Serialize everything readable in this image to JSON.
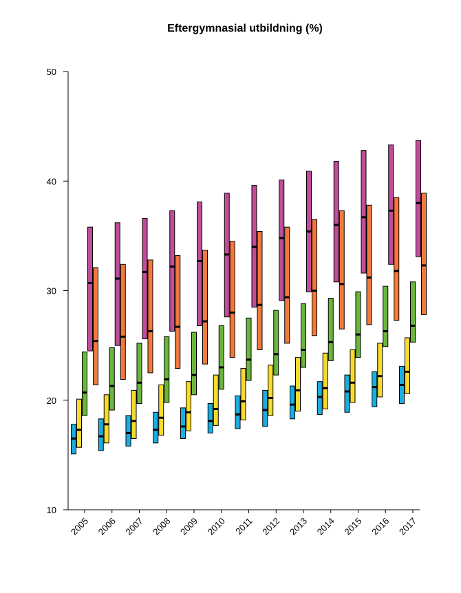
{
  "chart_data": {
    "type": "box-range",
    "title": "Eftergymnasial utbildning (%)",
    "xlabel": "",
    "ylabel": "",
    "ylim": [
      10,
      50
    ],
    "yticks": [
      10,
      20,
      30,
      40,
      50
    ],
    "categories": [
      "2005",
      "2006",
      "2007",
      "2008",
      "2009",
      "2010",
      "2011",
      "2012",
      "2013",
      "2014",
      "2015",
      "2016",
      "2017"
    ],
    "grid": false,
    "legend": "none",
    "series": [
      {
        "color": "#1aaee0",
        "low": [
          15.1,
          15.4,
          15.8,
          16.1,
          16.5,
          17.0,
          17.4,
          17.6,
          18.3,
          18.7,
          18.9,
          19.4,
          19.7
        ],
        "median": [
          16.5,
          16.7,
          17.0,
          17.3,
          17.6,
          18.1,
          18.7,
          19.1,
          19.6,
          20.3,
          20.8,
          21.2,
          21.4
        ],
        "high": [
          17.8,
          18.3,
          18.6,
          18.9,
          19.3,
          19.7,
          20.4,
          20.9,
          21.3,
          21.7,
          22.3,
          22.6,
          23.1
        ]
      },
      {
        "color": "#f9db2b",
        "low": [
          15.7,
          16.1,
          16.5,
          16.8,
          17.2,
          17.7,
          18.2,
          18.6,
          19.0,
          19.2,
          19.8,
          20.3,
          20.6
        ],
        "median": [
          17.3,
          17.8,
          18.1,
          18.4,
          18.9,
          19.2,
          19.9,
          20.2,
          20.9,
          21.1,
          21.6,
          22.2,
          22.6
        ],
        "high": [
          20.1,
          20.5,
          20.9,
          21.4,
          21.7,
          22.3,
          22.9,
          23.2,
          23.9,
          24.3,
          24.6,
          25.2,
          25.7
        ]
      },
      {
        "color": "#6ab63d",
        "low": [
          18.6,
          19.1,
          19.7,
          19.8,
          20.5,
          21.0,
          21.8,
          22.3,
          23.0,
          23.6,
          23.9,
          24.9,
          25.3
        ],
        "median": [
          20.7,
          21.3,
          21.6,
          21.9,
          22.3,
          23.0,
          23.7,
          24.2,
          24.6,
          25.3,
          26.0,
          26.3,
          26.8
        ],
        "high": [
          24.4,
          24.8,
          25.2,
          25.8,
          26.2,
          26.8,
          27.5,
          28.2,
          28.8,
          29.3,
          29.9,
          30.4,
          30.8
        ]
      },
      {
        "color": "#c14c9a",
        "low": [
          24.5,
          25.0,
          25.6,
          26.3,
          26.8,
          27.6,
          28.5,
          29.1,
          29.9,
          30.8,
          31.6,
          32.4,
          33.1
        ],
        "median": [
          30.7,
          31.1,
          31.7,
          32.2,
          32.7,
          33.3,
          34.0,
          34.8,
          35.4,
          36.0,
          36.7,
          37.3,
          38.0
        ],
        "high": [
          35.8,
          36.2,
          36.6,
          37.3,
          38.1,
          38.9,
          39.6,
          40.1,
          40.9,
          41.8,
          42.8,
          43.3,
          43.7
        ]
      },
      {
        "color": "#f2793b",
        "low": [
          21.4,
          21.9,
          22.5,
          22.9,
          23.3,
          23.9,
          24.6,
          25.2,
          25.9,
          26.5,
          26.9,
          27.3,
          27.8
        ],
        "median": [
          25.4,
          25.8,
          26.3,
          26.7,
          27.2,
          28.0,
          28.7,
          29.4,
          30.0,
          30.6,
          31.2,
          31.8,
          32.3
        ],
        "high": [
          32.1,
          32.4,
          32.8,
          33.2,
          33.7,
          34.5,
          35.4,
          35.8,
          36.5,
          37.3,
          37.8,
          38.5,
          38.9
        ]
      }
    ]
  }
}
